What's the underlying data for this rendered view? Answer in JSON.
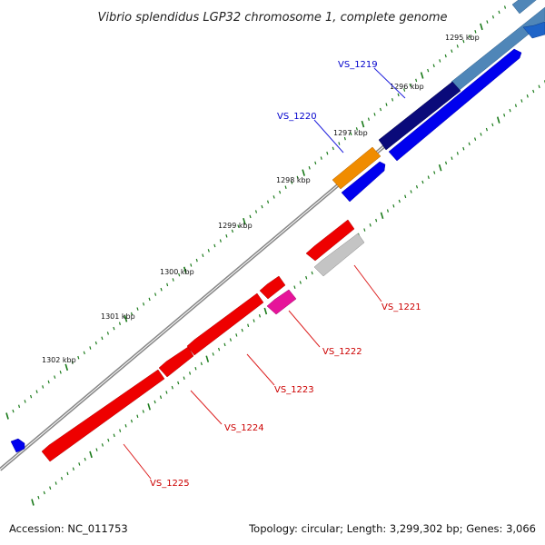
{
  "title": "Vibrio splendidus LGP32 chromosome 1, complete genome",
  "footer": {
    "accession": "Accession: NC_011753",
    "summary": "Topology: circular; Length: 3,299,302 bp; Genes: 3,066"
  },
  "colors": {
    "backbone": "#777777",
    "tick": "#1a7a1a",
    "label_forward": "#0000cc",
    "label_reverse": "#cc0000",
    "leader_forward": "#2222dd",
    "leader_reverse": "#dd2222"
  },
  "ruler": {
    "ticks": [
      "1295 kbp",
      "1296 kbp",
      "1297 kbp",
      "1298 kbp",
      "1299 kbp",
      "1300 kbp",
      "1301 kbp",
      "1302 kbp"
    ]
  },
  "gene_labels": {
    "forward": [
      "VS_1219",
      "VS_1220"
    ],
    "reverse": [
      "VS_1221",
      "VS_1222",
      "VS_1223",
      "VS_1224",
      "VS_1225"
    ]
  }
}
